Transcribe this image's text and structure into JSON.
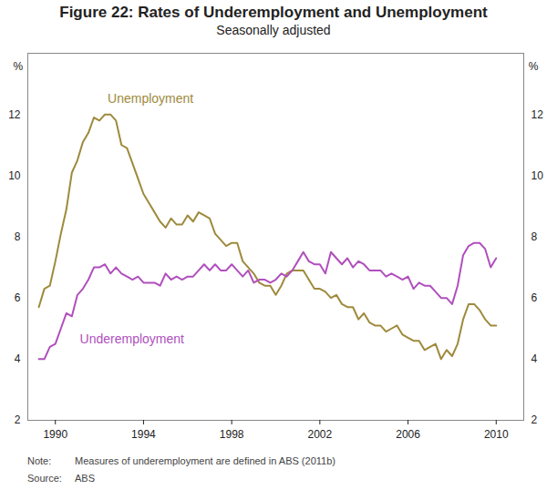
{
  "chart_data": {
    "type": "line",
    "title": "Figure 22: Rates of Underemployment and Unemployment",
    "subtitle": "Seasonally adjusted",
    "y_label": "%",
    "x": [
      1989.25,
      1989.5,
      1989.75,
      1990,
      1990.25,
      1990.5,
      1990.75,
      1991,
      1991.25,
      1991.5,
      1991.75,
      1992,
      1992.25,
      1992.5,
      1992.75,
      1993,
      1993.25,
      1993.5,
      1993.75,
      1994,
      1994.25,
      1994.5,
      1994.75,
      1995,
      1995.25,
      1995.5,
      1995.75,
      1996,
      1996.25,
      1996.5,
      1996.75,
      1997,
      1997.25,
      1997.5,
      1997.75,
      1998,
      1998.25,
      1998.5,
      1998.75,
      1999,
      1999.25,
      1999.5,
      1999.75,
      2000,
      2000.25,
      2000.5,
      2000.75,
      2001,
      2001.25,
      2001.5,
      2001.75,
      2002,
      2002.25,
      2002.5,
      2002.75,
      2003,
      2003.25,
      2003.5,
      2003.75,
      2004,
      2004.25,
      2004.5,
      2004.75,
      2005,
      2005.25,
      2005.5,
      2005.75,
      2006,
      2006.25,
      2006.5,
      2006.75,
      2007,
      2007.25,
      2007.5,
      2007.75,
      2008,
      2008.25,
      2008.5,
      2008.75,
      2009,
      2009.25,
      2009.5,
      2009.75,
      2010
    ],
    "xlim": [
      1988.75,
      2011.25
    ],
    "xticks": [
      1990,
      1994,
      1998,
      2002,
      2006,
      2010
    ],
    "ylim": [
      2,
      14
    ],
    "yticks": [
      2,
      4,
      6,
      8,
      10,
      12
    ],
    "grid": false,
    "series": [
      {
        "name": "Unemployment",
        "color": "#9e8a3c",
        "values": [
          5.7,
          6.3,
          6.4,
          7.2,
          8.1,
          8.9,
          10.1,
          10.5,
          11.1,
          11.4,
          11.9,
          11.8,
          12.0,
          12.0,
          11.8,
          11.0,
          10.9,
          10.4,
          9.9,
          9.4,
          9.1,
          8.8,
          8.5,
          8.3,
          8.6,
          8.4,
          8.4,
          8.7,
          8.5,
          8.8,
          8.7,
          8.6,
          8.1,
          7.9,
          7.7,
          7.8,
          7.8,
          7.2,
          7.0,
          6.8,
          6.5,
          6.4,
          6.4,
          6.1,
          6.4,
          6.8,
          6.9,
          6.9,
          6.9,
          6.6,
          6.3,
          6.3,
          6.2,
          6.0,
          6.1,
          5.8,
          5.7,
          5.7,
          5.3,
          5.5,
          5.2,
          5.1,
          5.1,
          4.9,
          5.0,
          5.1,
          4.8,
          4.7,
          4.6,
          4.6,
          4.3,
          4.4,
          4.5,
          4.0,
          4.3,
          4.1,
          4.5,
          5.3,
          5.8,
          5.8,
          5.6,
          5.3,
          5.1,
          5.1
        ]
      },
      {
        "name": "Underemployment",
        "color": "#b04fbd",
        "values": [
          4.0,
          4.0,
          4.4,
          4.5,
          5.0,
          5.5,
          5.4,
          6.1,
          6.3,
          6.6,
          7.0,
          7.0,
          7.1,
          6.8,
          7.0,
          6.8,
          6.7,
          6.6,
          6.7,
          6.5,
          6.5,
          6.5,
          6.4,
          6.8,
          6.6,
          6.7,
          6.6,
          6.7,
          6.7,
          6.9,
          7.1,
          6.9,
          7.1,
          6.9,
          6.9,
          7.1,
          6.9,
          6.7,
          6.9,
          6.5,
          6.6,
          6.6,
          6.5,
          6.6,
          6.8,
          6.7,
          6.9,
          7.2,
          7.5,
          7.2,
          7.1,
          7.1,
          6.8,
          7.5,
          7.3,
          7.1,
          7.3,
          7.0,
          7.2,
          7.1,
          6.9,
          6.9,
          6.9,
          6.7,
          6.8,
          6.7,
          6.6,
          6.7,
          6.3,
          6.5,
          6.4,
          6.4,
          6.2,
          6.0,
          6.0,
          5.8,
          6.4,
          7.4,
          7.7,
          7.8,
          7.8,
          7.6,
          7.0,
          7.3
        ]
      }
    ],
    "notes": [
      {
        "label": "Note:",
        "text": "Measures of underemployment are defined in ABS (2011b)"
      },
      {
        "label": "Source:",
        "text": "ABS"
      }
    ]
  }
}
